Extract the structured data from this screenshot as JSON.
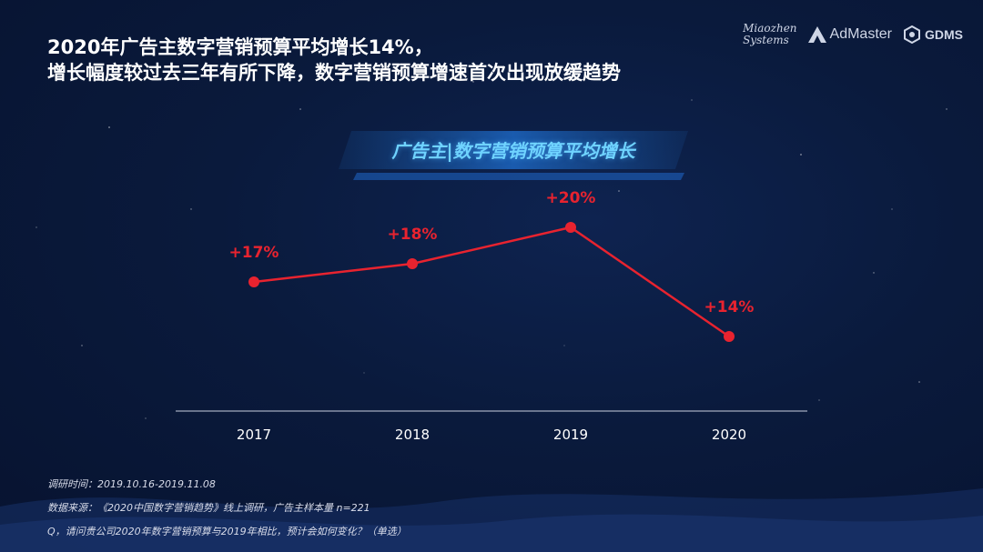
{
  "headline": {
    "line1": "2020年广告主数字营销预算平均增长14%，",
    "line2": "增长幅度较过去三年有所下降，数字营销预算增速首次出现放缓趋势"
  },
  "logos": {
    "miaozhen_line1": "Miaozhen",
    "miaozhen_line2": "Systems",
    "admaster": "AdMaster",
    "gdms": "GDMS"
  },
  "chart_data": {
    "type": "line",
    "title": "广告主|数字营销预算平均增长",
    "xlabel": "",
    "ylabel": "",
    "categories": [
      "2017",
      "2018",
      "2019",
      "2020"
    ],
    "series": [
      {
        "values": [
          17,
          18,
          20,
          14
        ]
      }
    ],
    "data_labels": [
      "+17%",
      "+18%",
      "+20%",
      "+14%"
    ],
    "ylim": [
      10,
      22
    ],
    "grid": false,
    "line_color": "#e8232f"
  },
  "notes": {
    "survey_time": "调研时间：2019.10.16-2019.11.08",
    "source": "数据来源：《2020中国数字营销趋势》线上调研，广告主样本量 n=221",
    "question": "Q，请问贵公司2020年数字营销预算与2019年相比，预计会如何变化？（单选）"
  }
}
